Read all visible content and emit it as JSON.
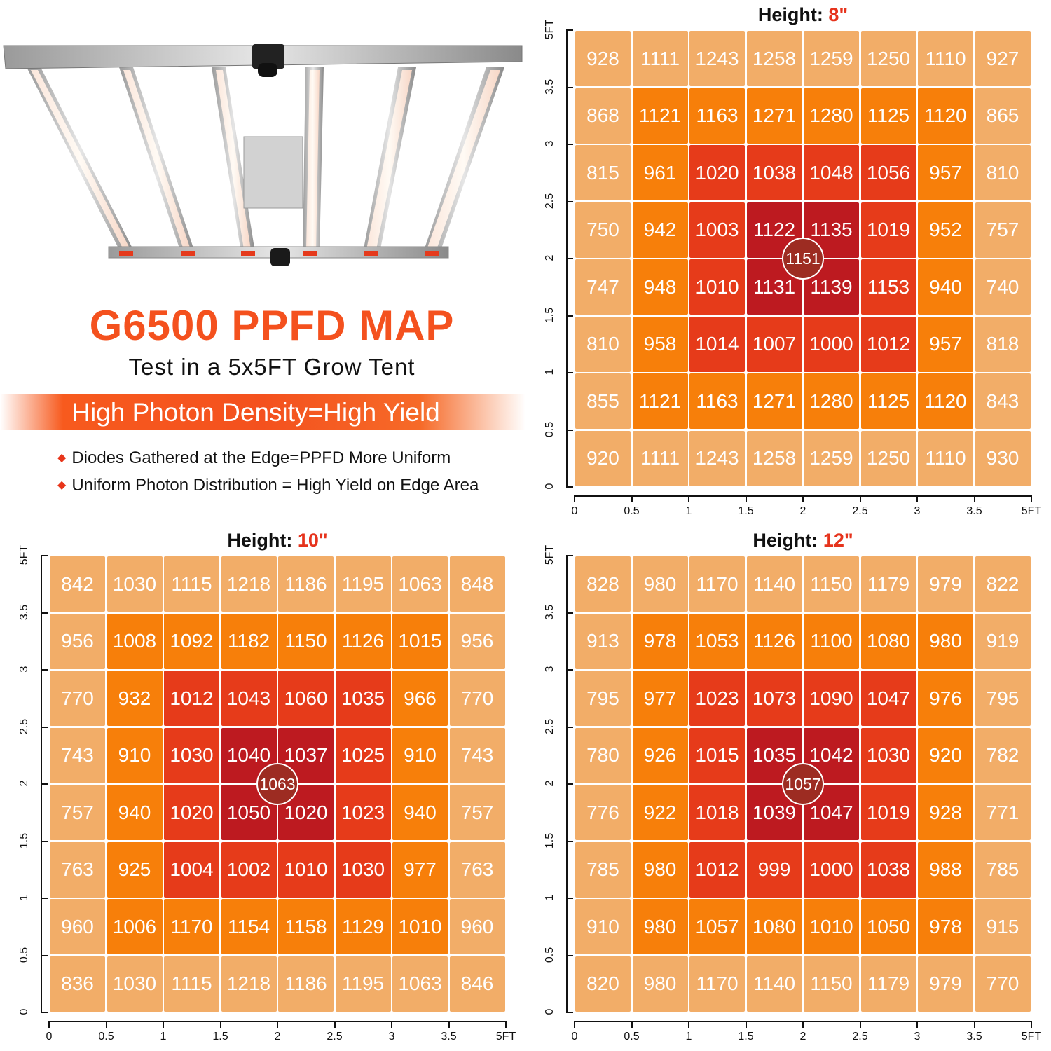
{
  "header": {
    "title": "G6500 PPFD MAP",
    "subtitle": "Test in a 5x5FT Grow Tent",
    "banner": "High Photon Density=High Yield",
    "bullets": [
      "Diodes Gathered at the Edge=PPFD More Uniform",
      "Uniform Photon Distribution = High Yield on Edge Area"
    ]
  },
  "colors": {
    "accent": "#f4511e",
    "L": "#f2ad68",
    "O": "#f77f0a",
    "R": "#e63b1a",
    "D": "#bd1a20",
    "marker": "#9d2c22"
  },
  "chart_data": [
    {
      "type": "heatmap",
      "title_label": "Height: ",
      "title_value": "8\"",
      "x_ticks": [
        "0",
        "0.5",
        "1",
        "1.5",
        "2",
        "2.5",
        "3",
        "3.5",
        "5FT"
      ],
      "y_ticks": [
        "0",
        "0.5",
        "1",
        "1.5",
        "2",
        "2.5",
        "3",
        "3.5",
        "5FT"
      ],
      "center_value": "1151",
      "values": [
        [
          928,
          1111,
          1243,
          1258,
          1259,
          1250,
          1110,
          927
        ],
        [
          868,
          1121,
          1163,
          1271,
          1280,
          1125,
          1120,
          865
        ],
        [
          815,
          961,
          1020,
          1038,
          1048,
          1056,
          957,
          810
        ],
        [
          750,
          942,
          1003,
          1122,
          1135,
          1019,
          952,
          757
        ],
        [
          747,
          948,
          1010,
          1131,
          1139,
          1153,
          940,
          740
        ],
        [
          810,
          958,
          1014,
          1007,
          1000,
          1012,
          957,
          818
        ],
        [
          855,
          1121,
          1163,
          1271,
          1280,
          1125,
          1120,
          843
        ],
        [
          920,
          1111,
          1243,
          1258,
          1259,
          1250,
          1110,
          930
        ]
      ]
    },
    {
      "type": "heatmap",
      "title_label": "Height: ",
      "title_value": "10\"",
      "x_ticks": [
        "0",
        "0.5",
        "1",
        "1.5",
        "2",
        "2.5",
        "3",
        "3.5",
        "5FT"
      ],
      "y_ticks": [
        "0",
        "0.5",
        "1",
        "1.5",
        "2",
        "2.5",
        "3",
        "3.5",
        "5FT"
      ],
      "center_value": "1063",
      "values": [
        [
          842,
          1030,
          1115,
          1218,
          1186,
          1195,
          1063,
          848
        ],
        [
          956,
          1008,
          1092,
          1182,
          1150,
          1126,
          1015,
          956
        ],
        [
          770,
          932,
          1012,
          1043,
          1060,
          1035,
          966,
          770
        ],
        [
          743,
          910,
          1030,
          1040,
          1037,
          1025,
          910,
          743
        ],
        [
          757,
          940,
          1020,
          1050,
          1020,
          1023,
          940,
          757
        ],
        [
          763,
          925,
          1004,
          1002,
          1010,
          1030,
          977,
          763
        ],
        [
          960,
          1006,
          1170,
          1154,
          1158,
          1129,
          1010,
          960
        ],
        [
          836,
          1030,
          1115,
          1218,
          1186,
          1195,
          1063,
          846
        ]
      ]
    },
    {
      "type": "heatmap",
      "title_label": "Height: ",
      "title_value": "12\"",
      "x_ticks": [
        "0",
        "0.5",
        "1",
        "1.5",
        "2",
        "2.5",
        "3",
        "3.5",
        "5FT"
      ],
      "y_ticks": [
        "0",
        "0.5",
        "1",
        "1.5",
        "2",
        "2.5",
        "3",
        "3.5",
        "5FT"
      ],
      "center_value": "1057",
      "values": [
        [
          828,
          980,
          1170,
          1140,
          1150,
          1179,
          979,
          822
        ],
        [
          913,
          978,
          1053,
          1126,
          1100,
          1080,
          980,
          919
        ],
        [
          795,
          977,
          1023,
          1073,
          1090,
          1047,
          976,
          795
        ],
        [
          780,
          926,
          1015,
          1035,
          1042,
          1030,
          920,
          782
        ],
        [
          776,
          922,
          1018,
          1039,
          1047,
          1019,
          928,
          771
        ],
        [
          785,
          980,
          1012,
          999,
          1000,
          1038,
          988,
          785
        ],
        [
          910,
          980,
          1057,
          1080,
          1010,
          1050,
          978,
          915
        ],
        [
          820,
          980,
          1170,
          1140,
          1150,
          1179,
          979,
          770
        ]
      ]
    }
  ],
  "color_levels": [
    "LLLLLLLL",
    "LOOOOOOL",
    "LORRRROL",
    "LORDDROL",
    "LORDDROL",
    "LORRRROL",
    "LOOOOOOL",
    "LLLLLLLL"
  ]
}
